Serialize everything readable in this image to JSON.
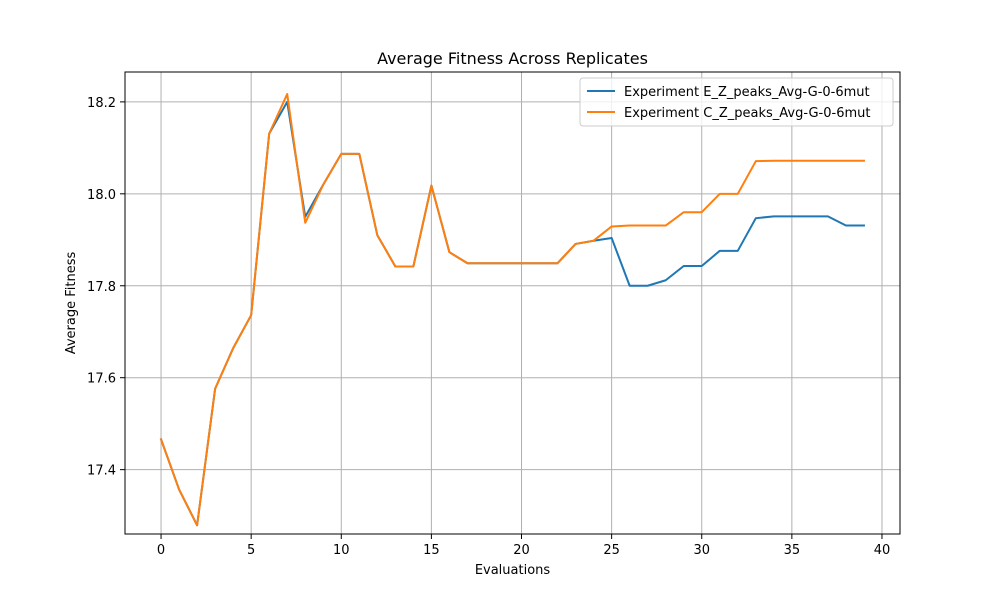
{
  "chart_data": {
    "type": "line",
    "title": "Average Fitness Across Replicates",
    "xlabel": "Evaluations",
    "ylabel": "Average Fitness",
    "xlim": [
      -2,
      41
    ],
    "ylim": [
      17.26,
      18.265
    ],
    "xticks": [
      0,
      5,
      10,
      15,
      20,
      25,
      30,
      35,
      40
    ],
    "yticks": [
      17.4,
      17.6,
      17.8,
      18.0,
      18.2
    ],
    "grid": true,
    "legend": "top-right",
    "x": [
      0,
      1,
      2,
      3,
      4,
      5,
      6,
      7,
      8,
      9,
      10,
      11,
      12,
      13,
      14,
      15,
      16,
      17,
      18,
      19,
      20,
      21,
      22,
      23,
      24,
      25,
      26,
      27,
      28,
      29,
      30,
      31,
      32,
      33,
      34,
      35,
      36,
      37,
      38,
      39
    ],
    "series": [
      {
        "name": "Experiment E_Z_peaks_Avg-G-0-6mut",
        "color": "#1f77b4",
        "values": [
          17.466,
          17.357,
          17.279,
          17.576,
          17.664,
          17.736,
          18.131,
          18.2,
          17.95,
          18.02,
          18.087,
          18.087,
          17.91,
          17.842,
          17.842,
          18.018,
          17.873,
          17.849,
          17.849,
          17.849,
          17.849,
          17.849,
          17.849,
          17.891,
          17.898,
          17.904,
          17.8,
          17.8,
          17.812,
          17.843,
          17.843,
          17.876,
          17.876,
          17.947,
          17.951,
          17.951,
          17.951,
          17.951,
          17.931,
          17.931
        ]
      },
      {
        "name": "Experiment C_Z_peaks_Avg-G-0-6mut",
        "color": "#ff7f0e",
        "values": [
          17.466,
          17.357,
          17.279,
          17.576,
          17.664,
          17.736,
          18.131,
          18.217,
          17.937,
          18.02,
          18.087,
          18.087,
          17.91,
          17.842,
          17.842,
          18.018,
          17.873,
          17.849,
          17.849,
          17.849,
          17.849,
          17.849,
          17.849,
          17.891,
          17.898,
          17.929,
          17.931,
          17.931,
          17.931,
          17.96,
          17.96,
          18.0,
          18.0,
          18.071,
          18.072,
          18.072,
          18.072,
          18.072,
          18.072,
          18.072
        ]
      }
    ]
  }
}
